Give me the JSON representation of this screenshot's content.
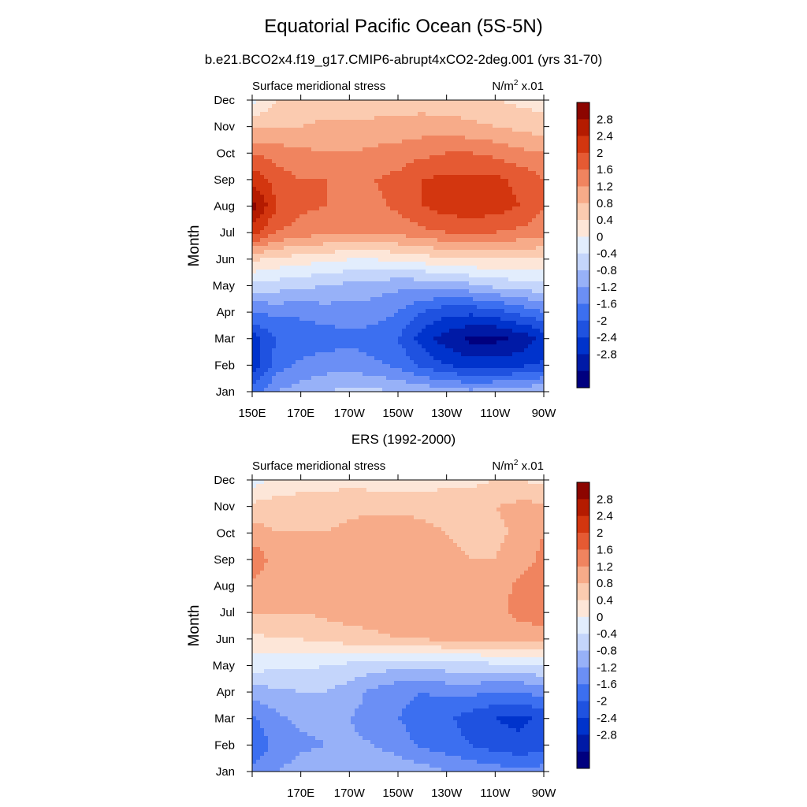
{
  "header": {
    "title": "Equatorial Pacific Ocean (5S-5N)",
    "model_title": "b.e21.BCO2x4.f19_g17.CMIP6-abrupt4xCO2-2deg.001 (yrs 31-70)",
    "obs_title": "ERS (1992-2000)"
  },
  "colors": {
    "levels": [
      "#00007f",
      "#001aa6",
      "#0033cc",
      "#1f52e0",
      "#3c6ff0",
      "#6b8ff5",
      "#97b1f8",
      "#c4d5fb",
      "#e2edfd",
      "#fde6d8",
      "#fbcbb0",
      "#f7ab89",
      "#f0845f",
      "#e55a33",
      "#d3360f",
      "#b41b00",
      "#8c0500"
    ]
  },
  "colorbar": {
    "labels": [
      "2.8",
      "2.4",
      "2",
      "1.6",
      "1.2",
      "0.8",
      "0.4",
      "0",
      "-0.4",
      "-0.8",
      "-1.2",
      "-1.6",
      "-2",
      "-2.4",
      "-2.8"
    ]
  },
  "chart_data": [
    {
      "type": "contour",
      "panel": "model",
      "title": "b.e21.BCO2x4.f19_g17.CMIP6-abrupt4xCO2-2deg.001 (yrs 31-70)",
      "left_label": "Surface meridional stress",
      "units_base": "N/m",
      "units_sup": "2",
      "units_suffix": " x.01",
      "ylabel": "Month",
      "months": [
        "Jan",
        "Feb",
        "Mar",
        "Apr",
        "May",
        "Jun",
        "Jul",
        "Aug",
        "Sep",
        "Oct",
        "Nov",
        "Dec"
      ],
      "lon_ticks": [
        "150E",
        "170E",
        "170W",
        "150W",
        "130W",
        "110W",
        "90W"
      ],
      "lon_range": [
        150,
        270
      ],
      "levels": [
        -3.2,
        -2.8,
        -2.4,
        -2,
        -1.6,
        -1.2,
        -0.8,
        -0.4,
        0,
        0.4,
        0.8,
        1.2,
        1.6,
        2,
        2.4,
        2.8
      ],
      "lon": [
        150,
        160,
        170,
        180,
        190,
        200,
        210,
        220,
        230,
        240,
        250,
        260,
        270
      ],
      "values": [
        [
          -1.8,
          -1.2,
          -1.0,
          -0.8,
          -0.7,
          -0.7,
          -0.8,
          -0.9,
          -1.0,
          -1.1,
          -1.0,
          -0.9,
          -0.8
        ],
        [
          -2.8,
          -1.8,
          -1.5,
          -1.4,
          -1.4,
          -1.5,
          -1.7,
          -2.1,
          -2.4,
          -2.6,
          -2.6,
          -2.5,
          -2.3
        ],
        [
          -2.6,
          -2.0,
          -1.9,
          -1.8,
          -1.7,
          -1.8,
          -2.0,
          -2.6,
          -3.0,
          -3.3,
          -3.3,
          -3.1,
          -2.7
        ],
        [
          -1.6,
          -1.5,
          -1.5,
          -1.4,
          -1.4,
          -1.4,
          -1.6,
          -2.0,
          -2.3,
          -2.3,
          -2.2,
          -1.9,
          -1.6
        ],
        [
          -0.5,
          -0.6,
          -0.7,
          -0.8,
          -0.9,
          -1.0,
          -1.1,
          -1.1,
          -1.0,
          -0.9,
          -0.7,
          -0.6,
          -0.5
        ],
        [
          0.5,
          0.3,
          0.2,
          0.1,
          0.0,
          0.0,
          0.1,
          0.2,
          0.3,
          0.4,
          0.4,
          0.4,
          0.3
        ],
        [
          2.2,
          1.6,
          1.4,
          1.3,
          1.2,
          1.2,
          1.3,
          1.5,
          1.6,
          1.6,
          1.6,
          1.5,
          1.4
        ],
        [
          3.0,
          2.0,
          1.7,
          1.6,
          1.5,
          1.5,
          1.7,
          2.0,
          2.2,
          2.3,
          2.2,
          2.0,
          1.6
        ],
        [
          2.3,
          1.8,
          1.6,
          1.6,
          1.6,
          1.6,
          1.7,
          2.0,
          2.1,
          2.1,
          2.1,
          1.9,
          1.6
        ],
        [
          1.6,
          1.4,
          1.3,
          1.2,
          1.2,
          1.3,
          1.4,
          1.5,
          1.6,
          1.6,
          1.5,
          1.3,
          1.2
        ],
        [
          0.7,
          0.8,
          0.8,
          0.9,
          0.9,
          0.9,
          0.9,
          1.0,
          1.0,
          0.9,
          0.8,
          0.7,
          0.6
        ],
        [
          -0.2,
          0.4,
          0.5,
          0.5,
          0.5,
          0.6,
          0.6,
          0.6,
          0.5,
          0.5,
          0.4,
          0.3,
          0.2
        ]
      ]
    },
    {
      "type": "contour",
      "panel": "observations",
      "title": "ERS (1992-2000)",
      "left_label": "Surface meridional stress",
      "units_base": "N/m",
      "units_sup": "2",
      "units_suffix": " x.01",
      "ylabel": "Month",
      "months": [
        "Jan",
        "Feb",
        "Mar",
        "Apr",
        "May",
        "Jun",
        "Jul",
        "Aug",
        "Sep",
        "Oct",
        "Nov",
        "Dec"
      ],
      "lon_ticks": [
        "",
        "170E",
        "170W",
        "150W",
        "130W",
        "110W",
        "90W"
      ],
      "lon_range": [
        150,
        270
      ],
      "levels": [
        -3.2,
        -2.8,
        -2.4,
        -2,
        -1.6,
        -1.2,
        -0.8,
        -0.4,
        0,
        0.4,
        0.8,
        1.2,
        1.6,
        2,
        2.4,
        2.8
      ],
      "lon": [
        150,
        160,
        170,
        180,
        190,
        200,
        210,
        220,
        230,
        240,
        250,
        260,
        270
      ],
      "values": [
        [
          -1.5,
          -1.2,
          -1.0,
          -0.9,
          -0.8,
          -0.8,
          -0.9,
          -1.0,
          -1.2,
          -1.3,
          -1.4,
          -1.5,
          -1.4
        ],
        [
          -1.9,
          -1.5,
          -1.3,
          -1.2,
          -1.1,
          -1.2,
          -1.4,
          -1.7,
          -1.8,
          -2.0,
          -2.2,
          -2.3,
          -2.2
        ],
        [
          -1.7,
          -1.3,
          -1.1,
          -1.1,
          -1.2,
          -1.4,
          -1.6,
          -1.8,
          -1.9,
          -2.2,
          -2.4,
          -2.5,
          -2.3
        ],
        [
          -1.0,
          -0.9,
          -0.8,
          -0.8,
          -1.0,
          -1.3,
          -1.5,
          -1.6,
          -1.5,
          -1.5,
          -1.6,
          -1.6,
          -1.4
        ],
        [
          -0.2,
          -0.3,
          -0.3,
          -0.4,
          -0.5,
          -0.6,
          -0.7,
          -0.7,
          -0.6,
          -0.6,
          -0.5,
          -0.5,
          -0.4
        ],
        [
          0.3,
          0.4,
          0.4,
          0.5,
          0.6,
          0.7,
          0.8,
          0.8,
          0.9,
          0.9,
          0.9,
          1.0,
          1.0
        ],
        [
          0.8,
          0.8,
          0.8,
          0.9,
          1.0,
          1.0,
          1.1,
          1.1,
          1.1,
          1.0,
          1.1,
          1.3,
          1.4
        ],
        [
          1.1,
          1.0,
          0.9,
          0.9,
          1.0,
          1.0,
          1.1,
          1.0,
          1.0,
          0.9,
          1.0,
          1.3,
          1.5
        ],
        [
          1.5,
          1.0,
          0.9,
          0.9,
          1.0,
          1.1,
          1.1,
          1.0,
          0.9,
          0.8,
          0.8,
          1.0,
          1.3
        ],
        [
          1.0,
          0.8,
          0.8,
          0.8,
          0.9,
          1.0,
          1.0,
          0.9,
          0.8,
          0.7,
          0.7,
          0.9,
          1.2
        ],
        [
          0.5,
          0.6,
          0.6,
          0.6,
          0.7,
          0.7,
          0.7,
          0.7,
          0.6,
          0.6,
          0.8,
          0.9,
          0.9
        ],
        [
          -0.2,
          0.1,
          0.2,
          0.2,
          0.3,
          0.2,
          0.1,
          0.2,
          0.3,
          0.3,
          0.4,
          0.4,
          0.3
        ]
      ]
    }
  ]
}
